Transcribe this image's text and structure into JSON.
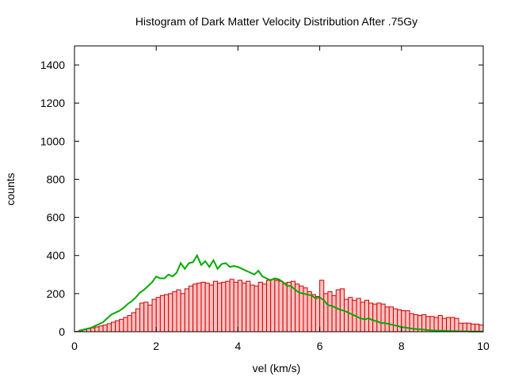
{
  "chart_data": {
    "type": "bar",
    "title": "Histogram of Dark Matter Velocity Distribution After .75Gy",
    "xlabel": "vel (km/s)",
    "ylabel": "counts",
    "xlim": [
      0,
      10
    ],
    "ylim": [
      0,
      1500
    ],
    "xticks": [
      0,
      2,
      4,
      6,
      8,
      10
    ],
    "yticks": [
      0,
      200,
      400,
      600,
      800,
      1000,
      1200,
      1400
    ],
    "grid": false,
    "legend": "none",
    "bin_width": 0.1,
    "series": [
      {
        "type": "histogram",
        "color": "#cc0000",
        "fill": "#ffc0c0",
        "x": [
          0.05,
          0.15,
          0.25,
          0.35,
          0.45,
          0.55,
          0.65,
          0.75,
          0.85,
          0.95,
          1.05,
          1.15,
          1.25,
          1.35,
          1.45,
          1.55,
          1.65,
          1.75,
          1.85,
          1.95,
          2.05,
          2.15,
          2.25,
          2.35,
          2.45,
          2.55,
          2.65,
          2.75,
          2.85,
          2.95,
          3.05,
          3.15,
          3.25,
          3.35,
          3.45,
          3.55,
          3.65,
          3.75,
          3.85,
          3.95,
          4.05,
          4.15,
          4.25,
          4.35,
          4.45,
          4.55,
          4.65,
          4.75,
          4.85,
          4.95,
          5.05,
          5.15,
          5.25,
          5.35,
          5.45,
          5.55,
          5.65,
          5.75,
          5.85,
          5.95,
          6.05,
          6.15,
          6.25,
          6.35,
          6.45,
          6.55,
          6.65,
          6.75,
          6.85,
          6.95,
          7.05,
          7.15,
          7.25,
          7.35,
          7.45,
          7.55,
          7.65,
          7.75,
          7.85,
          7.95,
          8.05,
          8.15,
          8.25,
          8.35,
          8.45,
          8.55,
          8.65,
          8.75,
          8.85,
          8.95,
          9.05,
          9.15,
          9.25,
          9.35,
          9.45,
          9.55,
          9.65,
          9.75,
          9.85,
          9.95
        ],
        "values": [
          2,
          5,
          10,
          15,
          20,
          25,
          30,
          35,
          42,
          50,
          58,
          65,
          75,
          85,
          100,
          120,
          150,
          155,
          140,
          170,
          180,
          190,
          195,
          200,
          210,
          220,
          200,
          225,
          240,
          250,
          255,
          260,
          255,
          245,
          265,
          255,
          260,
          265,
          275,
          260,
          270,
          255,
          265,
          245,
          240,
          260,
          250,
          270,
          275,
          270,
          265,
          255,
          260,
          265,
          250,
          240,
          230,
          210,
          195,
          185,
          270,
          200,
          210,
          190,
          220,
          225,
          170,
          180,
          165,
          175,
          155,
          165,
          150,
          145,
          150,
          145,
          130,
          130,
          120,
          115,
          110,
          110,
          95,
          90,
          85,
          90,
          80,
          80,
          75,
          85,
          70,
          75,
          75,
          70,
          45,
          45,
          45,
          40,
          40,
          35
        ]
      },
      {
        "type": "line",
        "color": "#00aa00",
        "x": [
          0.1,
          0.2,
          0.3,
          0.4,
          0.5,
          0.6,
          0.7,
          0.8,
          0.9,
          1.0,
          1.1,
          1.2,
          1.3,
          1.4,
          1.5,
          1.6,
          1.7,
          1.8,
          1.9,
          2.0,
          2.1,
          2.2,
          2.3,
          2.4,
          2.5,
          2.6,
          2.7,
          2.8,
          2.9,
          3.0,
          3.1,
          3.2,
          3.3,
          3.4,
          3.5,
          3.6,
          3.7,
          3.8,
          3.9,
          4.0,
          4.1,
          4.2,
          4.3,
          4.4,
          4.5,
          4.6,
          4.7,
          4.8,
          4.9,
          5.0,
          5.1,
          5.2,
          5.3,
          5.4,
          5.5,
          5.6,
          5.7,
          5.8,
          5.9,
          6.0,
          6.1,
          6.2,
          6.3,
          6.4,
          6.5,
          6.6,
          6.7,
          6.8,
          6.9,
          7.0,
          7.1,
          7.2,
          7.3,
          7.4,
          7.5,
          7.6,
          7.7,
          7.8,
          7.9,
          8.0,
          8.1,
          8.2,
          8.3,
          8.4,
          8.5,
          8.6,
          8.7,
          8.8,
          8.9,
          9.0,
          9.1,
          9.2,
          9.3,
          9.4,
          9.5,
          9.6,
          9.7,
          9.8,
          9.9,
          10.0
        ],
        "values": [
          5,
          10,
          15,
          20,
          30,
          40,
          50,
          70,
          90,
          100,
          110,
          125,
          145,
          160,
          180,
          205,
          220,
          240,
          260,
          290,
          280,
          280,
          300,
          290,
          310,
          360,
          330,
          360,
          365,
          400,
          350,
          370,
          340,
          375,
          330,
          355,
          360,
          340,
          345,
          340,
          330,
          320,
          310,
          300,
          320,
          290,
          280,
          270,
          280,
          275,
          260,
          240,
          240,
          220,
          205,
          200,
          195,
          190,
          175,
          180,
          165,
          140,
          135,
          125,
          115,
          110,
          100,
          90,
          80,
          70,
          65,
          70,
          60,
          55,
          45,
          45,
          40,
          35,
          30,
          25,
          22,
          18,
          15,
          14,
          12,
          10,
          8,
          6,
          5,
          5,
          4,
          3,
          3,
          2,
          2,
          2,
          1,
          1,
          1,
          1
        ]
      }
    ]
  }
}
